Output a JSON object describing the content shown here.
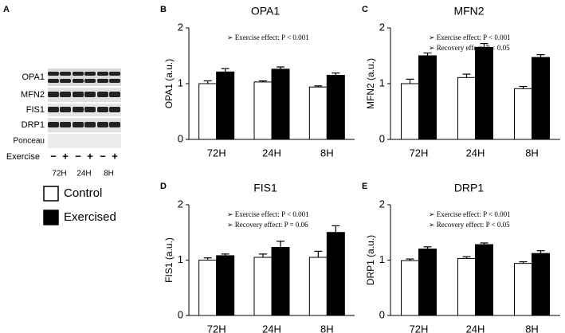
{
  "panel_a": {
    "letter": "A",
    "bands": [
      "OPA1",
      "MFN2",
      "FIS1",
      "DRP1",
      "Ponceau"
    ],
    "exercise_label": "Exercise",
    "signs": [
      "−",
      "+",
      "−",
      "+",
      "−",
      "+"
    ],
    "timepoints": [
      "72H",
      "24H",
      "8H"
    ]
  },
  "chart_data": [
    {
      "type": "bar",
      "letter": "B",
      "title": "OPA1",
      "ylabel": "OPA1 (a.u.)",
      "categories": [
        "72H",
        "24H",
        "8H"
      ],
      "ylim": [
        0,
        2
      ],
      "yticks": [
        0,
        1,
        2
      ],
      "annotations": [
        "➢  Exercise effect: P < 0.001"
      ],
      "series": [
        {
          "name": "Control",
          "color": "#ffffff",
          "values": [
            1.0,
            1.03,
            0.94
          ],
          "errors": [
            0.05,
            0.02,
            0.02
          ]
        },
        {
          "name": "Exercised",
          "color": "#000000",
          "values": [
            1.21,
            1.26,
            1.15
          ],
          "errors": [
            0.06,
            0.04,
            0.04
          ]
        }
      ]
    },
    {
      "type": "bar",
      "letter": "C",
      "title": "MFN2",
      "ylabel": "MFN2 (a.u.)",
      "categories": [
        "72H",
        "24H",
        "8H"
      ],
      "ylim": [
        0,
        2
      ],
      "yticks": [
        0,
        1,
        2
      ],
      "annotations": [
        "➢  Exercise effect: P < 0.001",
        "➢  Recovery effect: P < 0.05"
      ],
      "series": [
        {
          "name": "Control",
          "color": "#ffffff",
          "values": [
            1.0,
            1.11,
            0.91
          ],
          "errors": [
            0.08,
            0.06,
            0.04
          ]
        },
        {
          "name": "Exercised",
          "color": "#000000",
          "values": [
            1.5,
            1.65,
            1.47
          ],
          "errors": [
            0.05,
            0.07,
            0.05
          ]
        }
      ]
    },
    {
      "type": "bar",
      "letter": "D",
      "title": "FIS1",
      "ylabel": "FIS1 (a.u.)",
      "categories": [
        "72H",
        "24H",
        "8H"
      ],
      "ylim": [
        0,
        2
      ],
      "yticks": [
        0,
        1,
        2
      ],
      "annotations": [
        "➢  Exercise effect: P < 0.001",
        "➢  Recovery effect: P = 0.06"
      ],
      "series": [
        {
          "name": "Control",
          "color": "#ffffff",
          "values": [
            1.0,
            1.05,
            1.05
          ],
          "errors": [
            0.04,
            0.06,
            0.11
          ]
        },
        {
          "name": "Exercised",
          "color": "#000000",
          "values": [
            1.08,
            1.23,
            1.5
          ],
          "errors": [
            0.03,
            0.11,
            0.12
          ]
        }
      ]
    },
    {
      "type": "bar",
      "letter": "E",
      "title": "DRP1",
      "ylabel": "DRP1 (a.u.)",
      "categories": [
        "72H",
        "24H",
        "8H"
      ],
      "ylim": [
        0,
        2
      ],
      "yticks": [
        0,
        1,
        2
      ],
      "annotations": [
        "➢  Exercise effect: P < 0.001",
        "➢  Recovery effect: P < 0.05"
      ],
      "series": [
        {
          "name": "Control",
          "color": "#ffffff",
          "values": [
            0.99,
            1.03,
            0.94
          ],
          "errors": [
            0.03,
            0.03,
            0.03
          ]
        },
        {
          "name": "Exercised",
          "color": "#000000",
          "values": [
            1.2,
            1.28,
            1.12
          ],
          "errors": [
            0.04,
            0.03,
            0.05
          ]
        }
      ]
    }
  ]
}
